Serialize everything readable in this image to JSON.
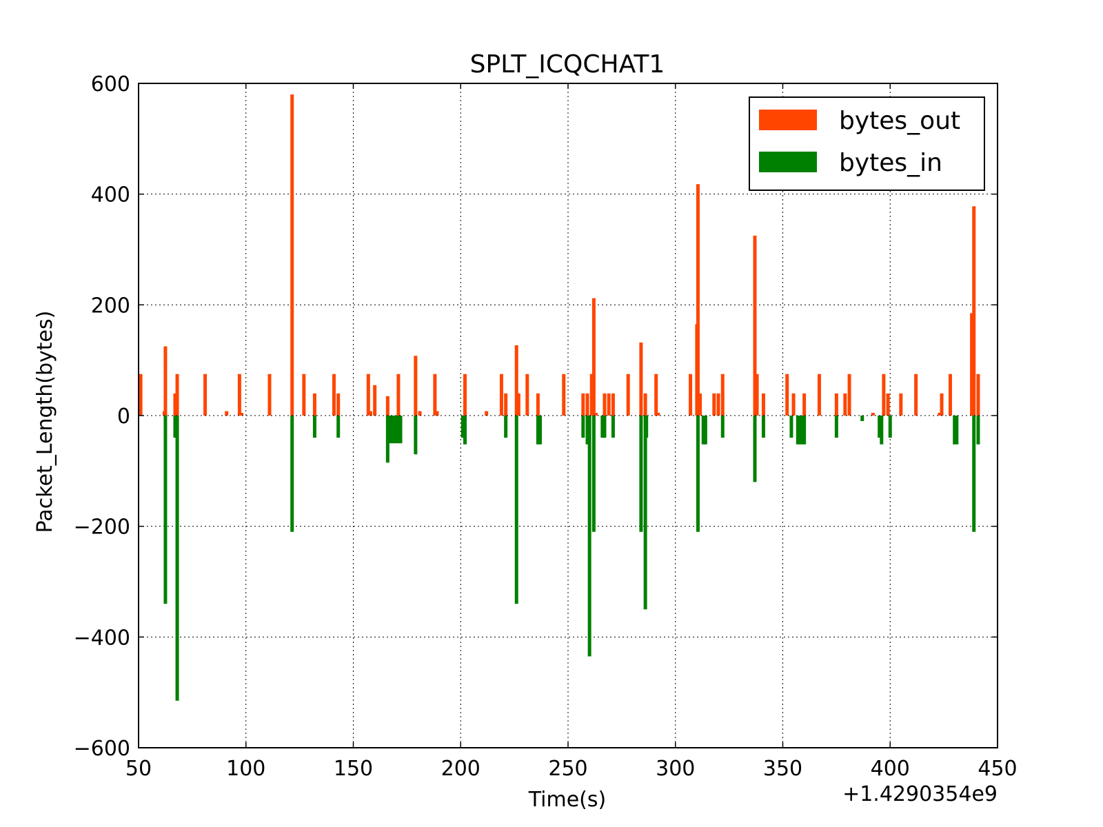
{
  "chart_data": {
    "type": "bar",
    "title": "SPLT_ICQCHAT1",
    "xlabel": "Time(s)",
    "ylabel": "Packet_Length(bytes)",
    "x_offset_label": "+1.4290354e9",
    "xlim": [
      50,
      450
    ],
    "ylim": [
      -600,
      600
    ],
    "x_ticks": [
      50,
      100,
      150,
      200,
      250,
      300,
      350,
      400,
      450
    ],
    "x_tick_labels": [
      "50",
      "100",
      "150",
      "200",
      "250",
      "300",
      "350",
      "400",
      "450"
    ],
    "y_ticks": [
      -600,
      -400,
      -200,
      0,
      200,
      400,
      600
    ],
    "y_tick_labels": [
      "−600",
      "−400",
      "−200",
      "0",
      "200",
      "400",
      "600"
    ],
    "grid": true,
    "legend_position": "top-right",
    "series": [
      {
        "name": "bytes_out",
        "color": "#ff4500",
        "points": [
          [
            51,
            75
          ],
          [
            62,
            8
          ],
          [
            62.5,
            125
          ],
          [
            67,
            40
          ],
          [
            68,
            75
          ],
          [
            81,
            75
          ],
          [
            91,
            8
          ],
          [
            97,
            75
          ],
          [
            98,
            5
          ],
          [
            111,
            75
          ],
          [
            121.5,
            580
          ],
          [
            127,
            75
          ],
          [
            132,
            40
          ],
          [
            141,
            75
          ],
          [
            143,
            40
          ],
          [
            157,
            75
          ],
          [
            158,
            8
          ],
          [
            160,
            55
          ],
          [
            166,
            35
          ],
          [
            171,
            75
          ],
          [
            179,
            108
          ],
          [
            181,
            8
          ],
          [
            188,
            75
          ],
          [
            189,
            8
          ],
          [
            202,
            75
          ],
          [
            212,
            8
          ],
          [
            219,
            75
          ],
          [
            221,
            40
          ],
          [
            226,
            127
          ],
          [
            227,
            40
          ],
          [
            231,
            75
          ],
          [
            236,
            40
          ],
          [
            248,
            75
          ],
          [
            257,
            40
          ],
          [
            259,
            40
          ],
          [
            261,
            75
          ],
          [
            262,
            212
          ],
          [
            263,
            5
          ],
          [
            267,
            40
          ],
          [
            269,
            40
          ],
          [
            271,
            40
          ],
          [
            278,
            75
          ],
          [
            284,
            132
          ],
          [
            286,
            40
          ],
          [
            291,
            75
          ],
          [
            292,
            5
          ],
          [
            307,
            75
          ],
          [
            310,
            165
          ],
          [
            310.5,
            418
          ],
          [
            311.5,
            40
          ],
          [
            318,
            40
          ],
          [
            320,
            40
          ],
          [
            322,
            75
          ],
          [
            337,
            325
          ],
          [
            338,
            75
          ],
          [
            341,
            40
          ],
          [
            352,
            75
          ],
          [
            355,
            40
          ],
          [
            360,
            40
          ],
          [
            367,
            75
          ],
          [
            375,
            40
          ],
          [
            379,
            40
          ],
          [
            381,
            75
          ],
          [
            392,
            5
          ],
          [
            397,
            75
          ],
          [
            399,
            40
          ],
          [
            405,
            40
          ],
          [
            412,
            75
          ],
          [
            423,
            5
          ],
          [
            424,
            40
          ],
          [
            428,
            75
          ],
          [
            438,
            185
          ],
          [
            439,
            378
          ],
          [
            441,
            75
          ]
        ]
      },
      {
        "name": "bytes_in",
        "color": "#008000",
        "points": [
          [
            62.5,
            -340
          ],
          [
            67,
            -40
          ],
          [
            68,
            -515
          ],
          [
            121.5,
            -210
          ],
          [
            132,
            -40
          ],
          [
            143,
            -40
          ],
          [
            166,
            -85
          ],
          [
            167,
            -50
          ],
          [
            168,
            -50
          ],
          [
            169,
            -50
          ],
          [
            170,
            -50
          ],
          [
            171,
            -50
          ],
          [
            172,
            -50
          ],
          [
            179,
            -70
          ],
          [
            201,
            -40
          ],
          [
            202,
            -52
          ],
          [
            221,
            -40
          ],
          [
            226,
            -340
          ],
          [
            236,
            -52
          ],
          [
            237,
            -52
          ],
          [
            257,
            -40
          ],
          [
            259,
            -52
          ],
          [
            260,
            -435
          ],
          [
            262,
            -210
          ],
          [
            266,
            -40
          ],
          [
            267,
            -40
          ],
          [
            271,
            -40
          ],
          [
            284,
            -210
          ],
          [
            286,
            -350
          ],
          [
            286.5,
            -40
          ],
          [
            310.5,
            -210
          ],
          [
            313,
            -52
          ],
          [
            314,
            -52
          ],
          [
            322,
            -40
          ],
          [
            337,
            -120
          ],
          [
            341,
            -40
          ],
          [
            354,
            -40
          ],
          [
            357,
            -52
          ],
          [
            358,
            -52
          ],
          [
            359,
            -52
          ],
          [
            360,
            -52
          ],
          [
            375,
            -40
          ],
          [
            387,
            -10
          ],
          [
            395,
            -40
          ],
          [
            396,
            -52
          ],
          [
            400,
            -40
          ],
          [
            430,
            -52
          ],
          [
            431,
            -52
          ],
          [
            439,
            -210
          ],
          [
            441,
            -52
          ]
        ]
      }
    ]
  }
}
